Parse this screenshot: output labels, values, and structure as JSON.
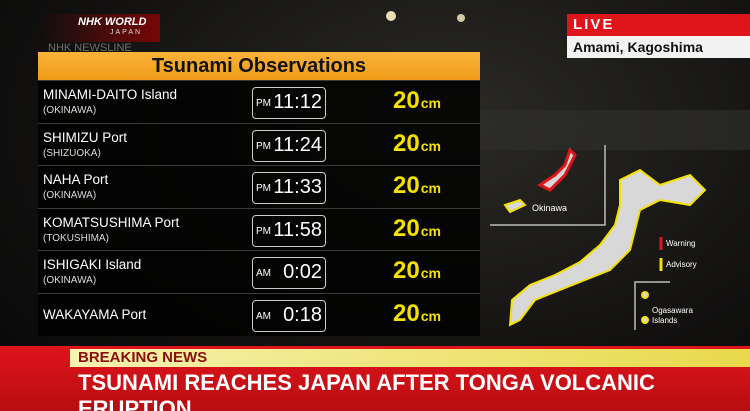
{
  "logo": {
    "brand": "NHK WORLD",
    "sub": "JAPAN",
    "program": "NHK NEWSLINE"
  },
  "live": {
    "badge": "LIVE",
    "location": "Amami, Kagoshima"
  },
  "table": {
    "title": "Tsunami Observations",
    "rows": [
      {
        "place": "MINAMI-DAITO Island",
        "prefecture": "(OKINAWA)",
        "period": "PM",
        "time": "11:12",
        "height": 20,
        "unit": "cm"
      },
      {
        "place": "SHIMIZU Port",
        "prefecture": "(SHIZUOKA)",
        "period": "PM",
        "time": "11:24",
        "height": 20,
        "unit": "cm"
      },
      {
        "place": "NAHA Port",
        "prefecture": "(OKINAWA)",
        "period": "PM",
        "time": "11:33",
        "height": 20,
        "unit": "cm"
      },
      {
        "place": "KOMATSUSHIMA Port",
        "prefecture": "(TOKUSHIMA)",
        "period": "PM",
        "time": "11:58",
        "height": 20,
        "unit": "cm"
      },
      {
        "place": "ISHIGAKI Island",
        "prefecture": "(OKINAWA)",
        "period": "AM",
        "time": "0:02",
        "height": 20,
        "unit": "cm"
      },
      {
        "place": "WAKAYAMA Port",
        "prefecture": null,
        "period": "AM",
        "time": "0:18",
        "height": 20,
        "unit": "cm"
      }
    ]
  },
  "map": {
    "inset": "Okinawa",
    "warning": "Warning",
    "advisory": "Advisory",
    "islands": [
      "Ogasawara",
      "Islands"
    ]
  },
  "ticker": {
    "label": "BREAKING NEWS",
    "headline": "TSUNAMI REACHES JAPAN AFTER TONGA VOLCANIC ERUPTION"
  }
}
